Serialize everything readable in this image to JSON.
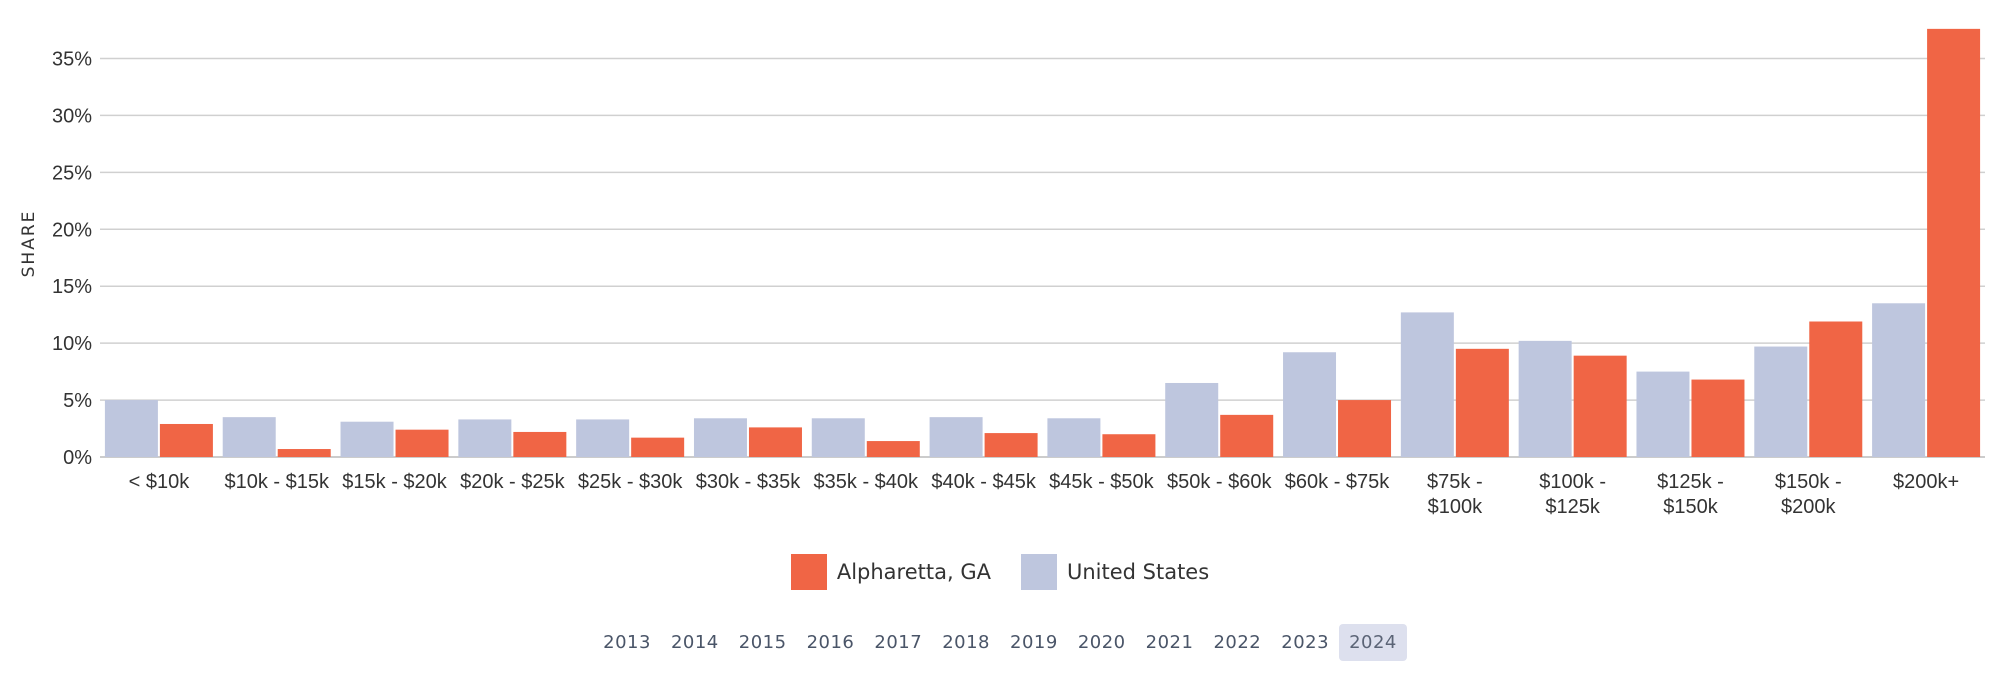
{
  "colors": {
    "local": "#f06545",
    "national": "#bec6de",
    "grid": "#d0d0d0",
    "axis": "#bbbbbb"
  },
  "chart_data": {
    "type": "bar",
    "ylabel": "SHARE",
    "ylim": [
      0,
      37.5
    ],
    "yticks": [
      0,
      5,
      10,
      15,
      20,
      25,
      30,
      35
    ],
    "ytick_labels": [
      "0%",
      "5%",
      "10%",
      "15%",
      "20%",
      "25%",
      "30%",
      "35%"
    ],
    "grid": true,
    "categories": [
      [
        "< $10k"
      ],
      [
        "$10k - $15k"
      ],
      [
        "$15k - $20k"
      ],
      [
        "$20k - $25k"
      ],
      [
        "$25k - $30k"
      ],
      [
        "$30k - $35k"
      ],
      [
        "$35k - $40k"
      ],
      [
        "$40k - $45k"
      ],
      [
        "$45k - $50k"
      ],
      [
        "$50k - $60k"
      ],
      [
        "$60k - $75k"
      ],
      [
        "$75k -",
        "$100k"
      ],
      [
        "$100k -",
        "$125k"
      ],
      [
        "$125k -",
        "$150k"
      ],
      [
        "$150k -",
        "$200k"
      ],
      [
        "$200k+"
      ]
    ],
    "series": [
      {
        "name": "United States",
        "values": [
          5.0,
          3.5,
          3.1,
          3.3,
          3.3,
          3.4,
          3.4,
          3.5,
          3.4,
          6.5,
          9.2,
          12.7,
          10.2,
          7.5,
          9.7,
          13.5
        ]
      },
      {
        "name": "Alpharetta, GA",
        "values": [
          2.9,
          0.7,
          2.4,
          2.2,
          1.7,
          2.6,
          1.4,
          2.1,
          2.0,
          3.7,
          5.0,
          9.5,
          8.9,
          6.8,
          11.9,
          37.6
        ]
      }
    ],
    "legend": {
      "placement": "bottom-center",
      "items": [
        "Alpharetta, GA",
        "United States"
      ]
    }
  },
  "years": [
    "2013",
    "2014",
    "2015",
    "2016",
    "2017",
    "2018",
    "2019",
    "2020",
    "2021",
    "2022",
    "2023",
    "2024"
  ],
  "selected_year": "2024"
}
